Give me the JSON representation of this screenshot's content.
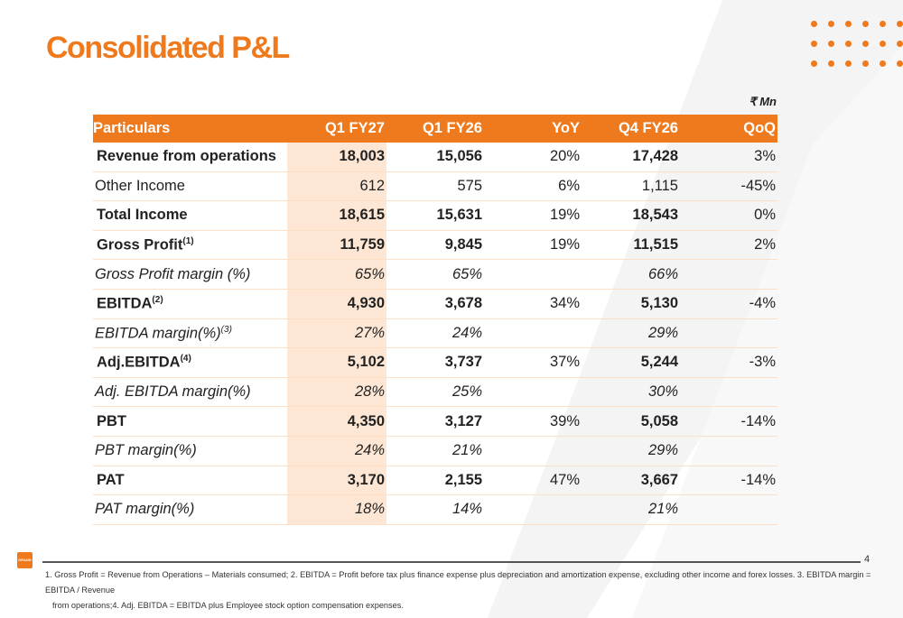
{
  "title": "Consolidated P&L",
  "unit": "₹ Mn",
  "page_number": "4",
  "logo_text": "GRAND",
  "colors": {
    "accent": "#ef7a1d",
    "highlight": "#fde7d4",
    "divider": "#fbe0c7"
  },
  "table": {
    "headers": [
      "Particulars",
      "Q1 FY27",
      "Q1 FY26",
      "YoY",
      "Q4 FY26",
      "QoQ"
    ],
    "rows": [
      {
        "style": "bold",
        "label": "Revenue from operations",
        "sup": "",
        "q1fy27": "18,003",
        "q1fy26": "15,056",
        "yoy": "20%",
        "q4fy26": "17,428",
        "qoq": "3%"
      },
      {
        "style": "normal",
        "label": "Other Income",
        "sup": "",
        "q1fy27": "612",
        "q1fy26": "575",
        "yoy": "6%",
        "q4fy26": "1,115",
        "qoq": "-45%"
      },
      {
        "style": "bold",
        "label": "Total Income",
        "sup": "",
        "q1fy27": "18,615",
        "q1fy26": "15,631",
        "yoy": "19%",
        "q4fy26": "18,543",
        "qoq": "0%"
      },
      {
        "style": "bold",
        "label": "Gross Profit",
        "sup": "(1)",
        "q1fy27": "11,759",
        "q1fy26": "9,845",
        "yoy": "19%",
        "q4fy26": "11,515",
        "qoq": "2%"
      },
      {
        "style": "italic",
        "label": "Gross Profit margin (%)",
        "sup": "",
        "q1fy27": "65%",
        "q1fy26": "65%",
        "yoy": "",
        "q4fy26": "66%",
        "qoq": ""
      },
      {
        "style": "bold",
        "label": "EBITDA",
        "sup": "(2)",
        "q1fy27": "4,930",
        "q1fy26": "3,678",
        "yoy": "34%",
        "q4fy26": "5,130",
        "qoq": "-4%"
      },
      {
        "style": "italic",
        "label": "EBITDA margin(%)",
        "sup": "(3)",
        "q1fy27": "27%",
        "q1fy26": "24%",
        "yoy": "",
        "q4fy26": "29%",
        "qoq": ""
      },
      {
        "style": "bold",
        "label": "Adj.EBITDA",
        "sup": "(4)",
        "q1fy27": "5,102",
        "q1fy26": "3,737",
        "yoy": "37%",
        "q4fy26": "5,244",
        "qoq": "-3%"
      },
      {
        "style": "italic",
        "label": "Adj. EBITDA margin(%)",
        "sup": "",
        "q1fy27": "28%",
        "q1fy26": "25%",
        "yoy": "",
        "q4fy26": "30%",
        "qoq": ""
      },
      {
        "style": "bold",
        "label": "PBT",
        "sup": "",
        "q1fy27": "4,350",
        "q1fy26": "3,127",
        "yoy": "39%",
        "q4fy26": "5,058",
        "qoq": "-14%"
      },
      {
        "style": "italic",
        "label": "PBT margin(%)",
        "sup": "",
        "q1fy27": "24%",
        "q1fy26": "21%",
        "yoy": "",
        "q4fy26": "29%",
        "qoq": ""
      },
      {
        "style": "bold",
        "label": "PAT",
        "sup": "",
        "q1fy27": "3,170",
        "q1fy26": "2,155",
        "yoy": "47%",
        "q4fy26": "3,667",
        "qoq": "-14%"
      },
      {
        "style": "italic",
        "label": "PAT margin(%)",
        "sup": "",
        "q1fy27": "18%",
        "q1fy26": "14%",
        "yoy": "",
        "q4fy26": "21%",
        "qoq": ""
      }
    ]
  },
  "footnote": {
    "line1": "1. Gross Profit = Revenue from Operations – Materials consumed; 2. EBITDA = Profit before tax plus finance expense plus depreciation and amortization expense, excluding other income and forex losses. 3. EBITDA margin = EBITDA / Revenue",
    "line2": "from operations;4.  Adj. EBITDA = EBITDA plus Employee stock option compensation expenses."
  }
}
